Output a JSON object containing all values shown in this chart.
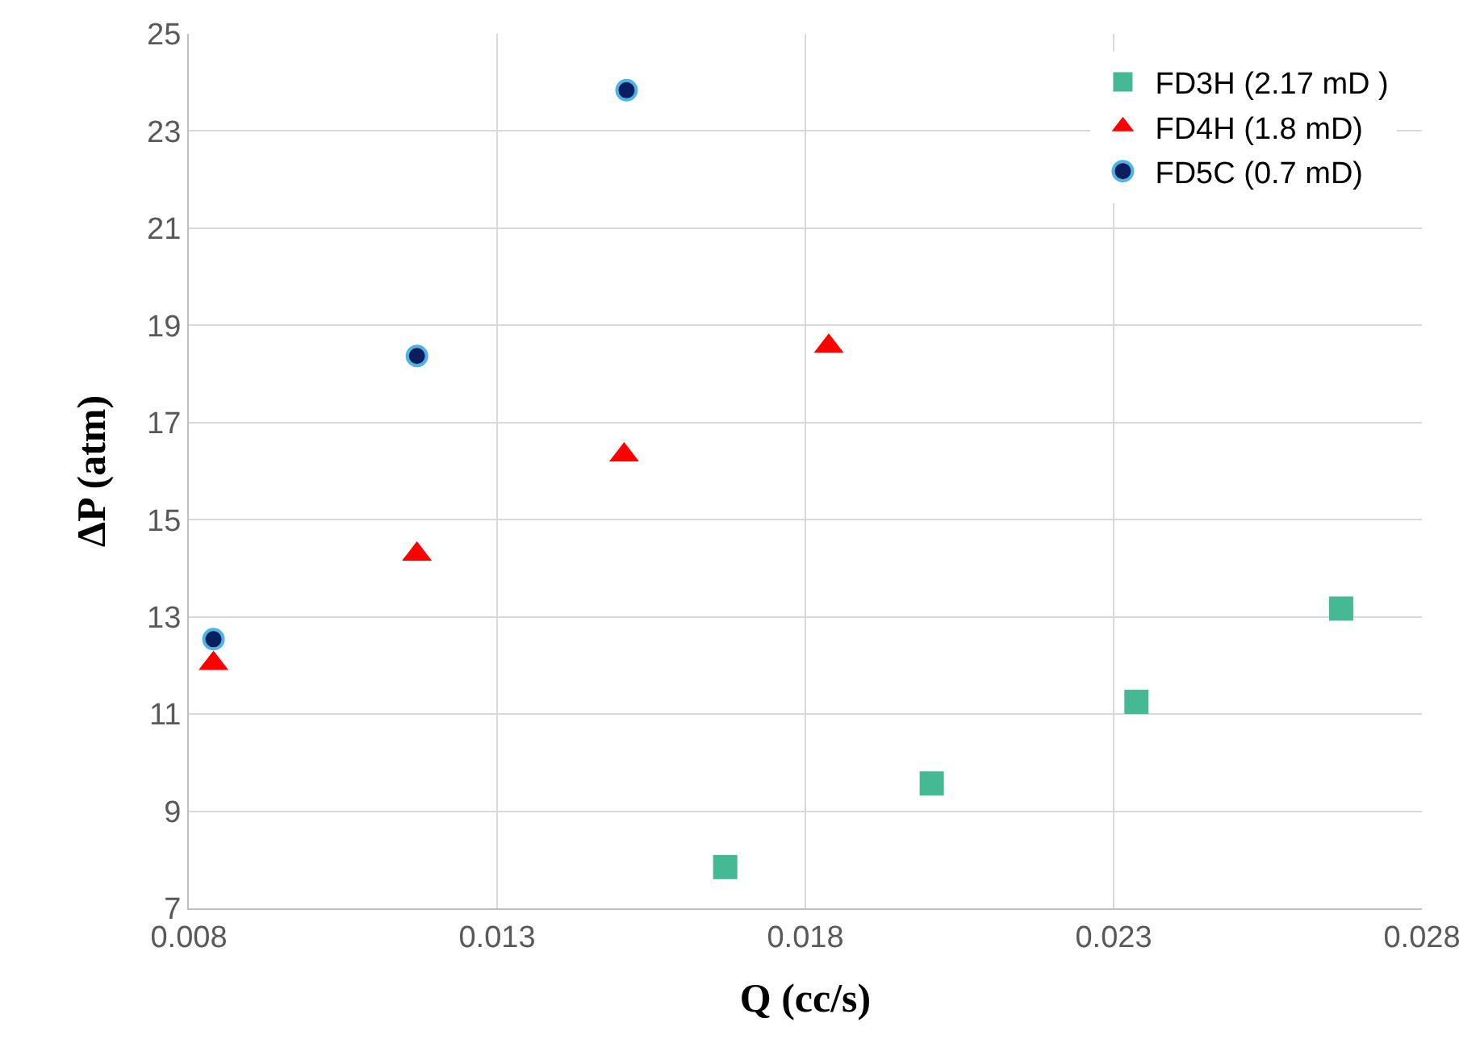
{
  "chart_data": {
    "type": "scatter",
    "xlabel": "Q (cc/s)",
    "ylabel": "ΔP (atm)",
    "xlim": [
      0.008,
      0.028
    ],
    "xticks": [
      0.008,
      0.013,
      0.018,
      0.023,
      0.028
    ],
    "ylim": [
      7,
      25
    ],
    "yticks": [
      7,
      9,
      11,
      13,
      15,
      17,
      19,
      21,
      23,
      25
    ],
    "grid": true,
    "legend": "top right",
    "series": [
      {
        "name": "FD3H (2.17 mD )",
        "color": "#44b994",
        "marker": "square",
        "x": [
          0.0167,
          0.02005,
          0.02337,
          0.02669
        ],
        "values": [
          7.85,
          9.57,
          11.25,
          13.17
        ]
      },
      {
        "name": "FD4H (1.8 mD)",
        "color": "#ff0000",
        "marker": "triangle",
        "x": [
          0.0084,
          0.0117,
          0.01506,
          0.01838
        ],
        "values": [
          12.04,
          14.29,
          16.33,
          18.57
        ]
      },
      {
        "name": "FD5C (0.7 mD)",
        "color": "#0b1f5c",
        "marker": "circle",
        "x": [
          0.0084,
          0.0117,
          0.0151
        ],
        "values": [
          12.54,
          18.37,
          23.84
        ]
      }
    ]
  }
}
